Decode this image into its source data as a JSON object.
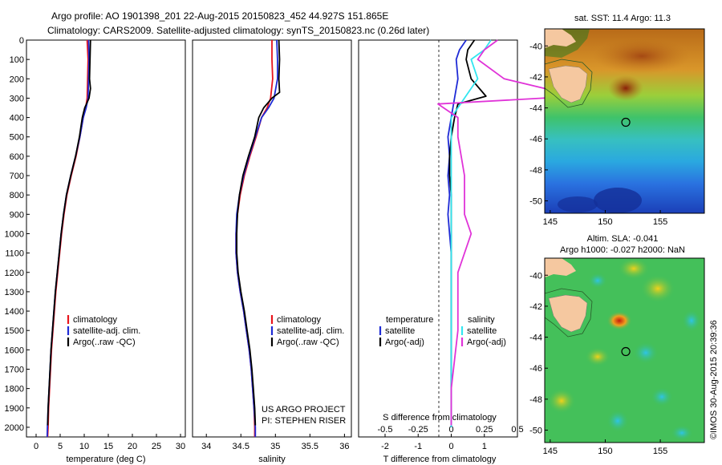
{
  "header": {
    "line1": "Argo profile: AO 1901398_201 22-Aug-2015 20150823_452 44.927S 151.865E",
    "line2": "Climatology: CARS2009. Satellite-adjusted climatology: synTS_20150823.nc (0.26d later)"
  },
  "credits": {
    "project": "US ARGO PROJECT",
    "pi": "PI: STEPHEN RISER",
    "stamp": "©IMOS 30-Aug-2015 20:39:36"
  },
  "colors": {
    "climatology": "#e8141c",
    "satellite": "#1f2bd6",
    "argo": "#000000",
    "sal_satellite": "#33e6f0",
    "sal_argo": "#e033d8",
    "land": "#f5c8a0"
  },
  "chart_data": [
    {
      "type": "line",
      "xlabel": "temperature (deg C)",
      "ylabel": "",
      "xlim": [
        -2,
        31
      ],
      "ylim": [
        2050,
        0
      ],
      "x_ticks": [
        "0",
        "5",
        "10",
        "15",
        "20",
        "25",
        "30"
      ],
      "y_ticks": [
        "0",
        "100",
        "200",
        "300",
        "400",
        "500",
        "600",
        "700",
        "800",
        "900",
        "1000",
        "1100",
        "1200",
        "1300",
        "1400",
        "1500",
        "1600",
        "1700",
        "1800",
        "1900",
        "2000"
      ],
      "legend": [
        "climatology",
        "satellite-adj. clim.",
        "Argo(..raw -QC)"
      ],
      "series": [
        {
          "name": "climatology",
          "color_key": "climatology",
          "points": [
            [
              10.6,
              0
            ],
            [
              10.8,
              100
            ],
            [
              10.7,
              200
            ],
            [
              10.6,
              300
            ],
            [
              10.3,
              350
            ],
            [
              9.8,
              400
            ],
            [
              9.1,
              500
            ],
            [
              8.3,
              600
            ],
            [
              7.3,
              700
            ],
            [
              6.4,
              800
            ],
            [
              5.8,
              900
            ],
            [
              5.3,
              1000
            ],
            [
              4.9,
              1100
            ],
            [
              4.5,
              1200
            ],
            [
              4.1,
              1300
            ],
            [
              3.8,
              1400
            ],
            [
              3.5,
              1500
            ],
            [
              3.2,
              1600
            ],
            [
              3.0,
              1700
            ],
            [
              2.8,
              1800
            ],
            [
              2.6,
              1900
            ],
            [
              2.5,
              2000
            ],
            [
              2.4,
              2050
            ]
          ]
        },
        {
          "name": "satellite-adj. clim.",
          "color_key": "satellite",
          "points": [
            [
              10.9,
              0
            ],
            [
              11.0,
              100
            ],
            [
              10.9,
              200
            ],
            [
              10.8,
              300
            ],
            [
              10.4,
              350
            ],
            [
              9.8,
              400
            ],
            [
              9.1,
              500
            ],
            [
              8.2,
              600
            ],
            [
              7.2,
              700
            ],
            [
              6.3,
              800
            ],
            [
              5.7,
              900
            ],
            [
              5.2,
              1000
            ],
            [
              4.8,
              1100
            ],
            [
              4.4,
              1200
            ],
            [
              4.0,
              1300
            ],
            [
              3.7,
              1400
            ],
            [
              3.4,
              1500
            ],
            [
              3.1,
              1600
            ],
            [
              2.9,
              1700
            ],
            [
              2.7,
              1800
            ],
            [
              2.5,
              1900
            ],
            [
              2.35,
              2000
            ],
            [
              2.3,
              2050
            ]
          ]
        },
        {
          "name": "Argo(..raw -QC)",
          "color_key": "argo",
          "points": [
            [
              11.3,
              0
            ],
            [
              11.2,
              100
            ],
            [
              11.1,
              200
            ],
            [
              11.3,
              250
            ],
            [
              11.0,
              300
            ],
            [
              10.1,
              350
            ],
            [
              9.6,
              400
            ],
            [
              9.0,
              500
            ],
            [
              8.2,
              600
            ],
            [
              7.2,
              700
            ],
            [
              6.3,
              800
            ],
            [
              5.7,
              900
            ],
            [
              5.2,
              1000
            ],
            [
              4.8,
              1100
            ],
            [
              4.4,
              1200
            ],
            [
              4.0,
              1300
            ],
            [
              3.7,
              1400
            ],
            [
              3.4,
              1500
            ],
            [
              3.1,
              1600
            ],
            [
              2.9,
              1700
            ],
            [
              2.7,
              1800
            ],
            [
              2.5,
              1900
            ],
            [
              2.4,
              1990
            ]
          ]
        }
      ]
    },
    {
      "type": "line",
      "xlabel": "salinity",
      "ylabel": "",
      "xlim": [
        33.8,
        36.1
      ],
      "ylim": [
        2050,
        0
      ],
      "x_ticks": [
        "34",
        "34.5",
        "35",
        "35.5",
        "36"
      ],
      "legend": [
        "climatology",
        "satellite-adj. clim.",
        "Argo(..raw -QC)"
      ],
      "series": [
        {
          "name": "climatology",
          "color_key": "climatology",
          "points": [
            [
              34.95,
              0
            ],
            [
              34.95,
              100
            ],
            [
              34.96,
              200
            ],
            [
              34.93,
              300
            ],
            [
              34.88,
              350
            ],
            [
              34.8,
              400
            ],
            [
              34.72,
              500
            ],
            [
              34.63,
              600
            ],
            [
              34.55,
              700
            ],
            [
              34.49,
              800
            ],
            [
              34.45,
              900
            ],
            [
              34.43,
              1000
            ],
            [
              34.43,
              1100
            ],
            [
              34.45,
              1200
            ],
            [
              34.49,
              1300
            ],
            [
              34.54,
              1400
            ],
            [
              34.58,
              1500
            ],
            [
              34.62,
              1600
            ],
            [
              34.65,
              1700
            ],
            [
              34.67,
              1800
            ],
            [
              34.69,
              1900
            ],
            [
              34.7,
              2000
            ],
            [
              34.7,
              2050
            ]
          ]
        },
        {
          "name": "satellite-adj. clim.",
          "color_key": "satellite",
          "points": [
            [
              35.02,
              0
            ],
            [
              35.03,
              100
            ],
            [
              35.03,
              200
            ],
            [
              34.98,
              300
            ],
            [
              34.9,
              350
            ],
            [
              34.8,
              400
            ],
            [
              34.71,
              500
            ],
            [
              34.62,
              600
            ],
            [
              34.54,
              700
            ],
            [
              34.48,
              800
            ],
            [
              34.44,
              900
            ],
            [
              34.43,
              1000
            ],
            [
              34.43,
              1100
            ],
            [
              34.45,
              1200
            ],
            [
              34.49,
              1300
            ],
            [
              34.54,
              1400
            ],
            [
              34.58,
              1500
            ],
            [
              34.62,
              1600
            ],
            [
              34.65,
              1700
            ],
            [
              34.67,
              1800
            ],
            [
              34.69,
              1900
            ],
            [
              34.71,
              2000
            ],
            [
              34.71,
              2050
            ]
          ]
        },
        {
          "name": "Argo(..raw -QC)",
          "color_key": "argo",
          "points": [
            [
              35.05,
              0
            ],
            [
              35.06,
              100
            ],
            [
              35.05,
              200
            ],
            [
              35.06,
              270
            ],
            [
              34.95,
              300
            ],
            [
              34.83,
              350
            ],
            [
              34.76,
              400
            ],
            [
              34.7,
              500
            ],
            [
              34.61,
              600
            ],
            [
              34.53,
              700
            ],
            [
              34.48,
              800
            ],
            [
              34.45,
              900
            ],
            [
              34.44,
              1000
            ],
            [
              34.44,
              1100
            ],
            [
              34.46,
              1200
            ],
            [
              34.5,
              1300
            ],
            [
              34.55,
              1400
            ],
            [
              34.59,
              1500
            ],
            [
              34.63,
              1600
            ],
            [
              34.66,
              1700
            ],
            [
              34.68,
              1800
            ],
            [
              34.7,
              1900
            ],
            [
              34.71,
              1990
            ]
          ]
        }
      ]
    },
    {
      "type": "line",
      "xlabel": "T difference from climatology",
      "ylabel": "",
      "xlim": [
        -2.8,
        2.0
      ],
      "ylim": [
        2050,
        0
      ],
      "x_ticks": [
        "-2",
        "-1",
        "0",
        "1"
      ],
      "x_ticks_top": [
        "-0.5",
        "-0.25",
        "0",
        "0.25",
        "0.5"
      ],
      "top_label": "S difference from climatology",
      "legend_left_title": "temperature",
      "legend_right_title": "salinity",
      "legend": [
        "satellite",
        "Argo(-adj)",
        "satellite",
        "Argo(-adj)"
      ],
      "series": [
        {
          "name": "satellite",
          "group": "temperature",
          "color_key": "satellite",
          "points": [
            [
              0.45,
              0
            ],
            [
              0.25,
              50
            ],
            [
              0.15,
              100
            ],
            [
              0.2,
              200
            ],
            [
              0.1,
              300
            ],
            [
              0.0,
              400
            ],
            [
              -0.1,
              500
            ],
            [
              -0.05,
              600
            ],
            [
              -0.1,
              700
            ],
            [
              -0.05,
              800
            ],
            [
              -0.1,
              900
            ],
            [
              -0.05,
              1000
            ],
            [
              0.0,
              1100
            ],
            [
              0.0,
              1200
            ],
            [
              0.0,
              1400
            ],
            [
              0.0,
              1600
            ],
            [
              0.0,
              1800
            ],
            [
              0.0,
              2000
            ]
          ]
        },
        {
          "name": "Argo(-adj)",
          "group": "temperature",
          "color_key": "argo",
          "points": [
            [
              0.7,
              0
            ],
            [
              0.5,
              50
            ],
            [
              0.45,
              100
            ],
            [
              0.6,
              200
            ],
            [
              1.05,
              290
            ],
            [
              0.2,
              330
            ],
            [
              0.1,
              400
            ],
            [
              0.0,
              500
            ],
            [
              -0.05,
              600
            ],
            [
              -0.05,
              700
            ],
            [
              0.0,
              800
            ],
            [
              0.0,
              900
            ],
            [
              0.0,
              1000
            ],
            [
              0.0,
              1100
            ],
            [
              0.0,
              1300
            ],
            [
              0.0,
              1500
            ],
            [
              0.0,
              1700
            ],
            [
              0.0,
              1990
            ]
          ]
        },
        {
          "name": "satellite",
          "group": "salinity",
          "color_key": "sal_satellite",
          "points": [
            [
              0.3,
              0
            ],
            [
              0.25,
              50
            ],
            [
              0.15,
              100
            ],
            [
              0.2,
              200
            ],
            [
              0.1,
              300
            ],
            [
              0.0,
              400
            ],
            [
              0.0,
              600
            ],
            [
              0.0,
              800
            ],
            [
              0.0,
              1000
            ],
            [
              0.0,
              1200
            ],
            [
              0.0,
              1400
            ],
            [
              0.0,
              1600
            ],
            [
              0.0,
              1800
            ],
            [
              0.0,
              2000
            ]
          ]
        },
        {
          "name": "Argo(-adj)",
          "group": "salinity",
          "color_key": "sal_argo",
          "points": [
            [
              0.35,
              0
            ],
            [
              0.25,
              50
            ],
            [
              0.2,
              100
            ],
            [
              0.4,
              200
            ],
            [
              0.95,
              290
            ],
            [
              -0.1,
              330
            ],
            [
              0.05,
              400
            ],
            [
              0.05,
              500
            ],
            [
              0.1,
              700
            ],
            [
              0.1,
              900
            ],
            [
              0.15,
              1000
            ],
            [
              0.05,
              1200
            ],
            [
              0.05,
              1500
            ],
            [
              0.0,
              1800
            ],
            [
              0.0,
              1990
            ]
          ]
        }
      ]
    },
    {
      "type": "heatmap",
      "title": "sat. SST: 11.4  Argo: 11.3",
      "xlim": [
        144.5,
        159
      ],
      "ylim": [
        -50.8,
        -38.9
      ],
      "x_ticks": [
        "145",
        "150",
        "155"
      ],
      "y_ticks": [
        "-40",
        "-42",
        "-44",
        "-46",
        "-48",
        "-50"
      ],
      "float_position": {
        "lon": 151.865,
        "lat": -44.927
      }
    },
    {
      "type": "heatmap",
      "title_line1": "Altim. SLA: -0.041",
      "title_line2": "Argo h1000: -0.027 h2000: NaN",
      "xlim": [
        144.5,
        159
      ],
      "ylim": [
        -50.8,
        -38.9
      ],
      "x_ticks": [
        "145",
        "150",
        "155"
      ],
      "y_ticks": [
        "-40",
        "-42",
        "-44",
        "-46",
        "-48",
        "-50"
      ],
      "float_position": {
        "lon": 151.865,
        "lat": -44.927
      }
    }
  ]
}
